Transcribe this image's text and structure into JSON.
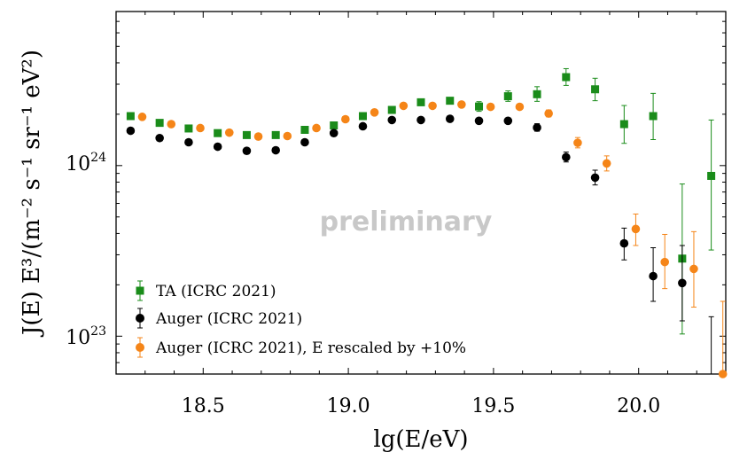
{
  "chart_data": {
    "type": "scatter",
    "title": "",
    "xlabel": "lg(E/eV)",
    "ylabel": "J(E) E³/(m⁻² s⁻¹ sr⁻¹ eV²)",
    "xlim": [
      18.2,
      20.3
    ],
    "ylim": [
      6e+22,
      8e+24
    ],
    "yscale": "log",
    "grid": false,
    "legend_position": "bottom-left",
    "annotation": "preliminary",
    "x_ticks": [
      18.5,
      19.0,
      19.5,
      20.0
    ],
    "x_tick_labels": [
      "18.5",
      "19.0",
      "19.5",
      "20.0"
    ],
    "y_ticks": [
      1e+23,
      1e+24
    ],
    "y_tick_labels": [
      {
        "base": "10",
        "exp": "23"
      },
      {
        "base": "10",
        "exp": "24"
      }
    ],
    "series": [
      {
        "name": "TA (ICRC 2021)",
        "color": "#1a8c1a",
        "marker": "square",
        "points": [
          {
            "x": 18.25,
            "y": 1.95e+24,
            "lo": 1.89e+24,
            "hi": 2.01e+24
          },
          {
            "x": 18.35,
            "y": 1.78e+24,
            "lo": 1.73e+24,
            "hi": 1.83e+24
          },
          {
            "x": 18.45,
            "y": 1.65e+24,
            "lo": 1.61e+24,
            "hi": 1.7e+24
          },
          {
            "x": 18.55,
            "y": 1.55e+24,
            "lo": 1.51e+24,
            "hi": 1.59e+24
          },
          {
            "x": 18.65,
            "y": 1.51e+24,
            "lo": 1.47e+24,
            "hi": 1.55e+24
          },
          {
            "x": 18.75,
            "y": 1.51e+24,
            "lo": 1.47e+24,
            "hi": 1.55e+24
          },
          {
            "x": 18.85,
            "y": 1.62e+24,
            "lo": 1.58e+24,
            "hi": 1.66e+24
          },
          {
            "x": 18.95,
            "y": 1.72e+24,
            "lo": 1.67e+24,
            "hi": 1.77e+24
          },
          {
            "x": 19.05,
            "y": 1.95e+24,
            "lo": 1.89e+24,
            "hi": 2.01e+24
          },
          {
            "x": 19.15,
            "y": 2.12e+24,
            "lo": 2.05e+24,
            "hi": 2.2e+24
          },
          {
            "x": 19.25,
            "y": 2.35e+24,
            "lo": 2.27e+24,
            "hi": 2.44e+24
          },
          {
            "x": 19.35,
            "y": 2.4e+24,
            "lo": 2.3e+24,
            "hi": 2.5e+24
          },
          {
            "x": 19.45,
            "y": 2.22e+24,
            "lo": 2.08e+24,
            "hi": 2.37e+24
          },
          {
            "x": 19.55,
            "y": 2.55e+24,
            "lo": 2.38e+24,
            "hi": 2.74e+24
          },
          {
            "x": 19.65,
            "y": 2.62e+24,
            "lo": 2.38e+24,
            "hi": 2.9e+24
          },
          {
            "x": 19.75,
            "y": 3.3e+24,
            "lo": 2.95e+24,
            "hi": 3.7e+24
          },
          {
            "x": 19.85,
            "y": 2.8e+24,
            "lo": 2.4e+24,
            "hi": 3.25e+24
          },
          {
            "x": 19.95,
            "y": 1.75e+24,
            "lo": 1.35e+24,
            "hi": 2.25e+24
          },
          {
            "x": 20.05,
            "y": 1.95e+24,
            "lo": 1.42e+24,
            "hi": 2.65e+24
          },
          {
            "x": 20.15,
            "y": 2.85e+23,
            "lo": 1.03e+23,
            "hi": 7.8e+23
          },
          {
            "x": 20.25,
            "y": 8.7e+23,
            "lo": 3.2e+23,
            "hi": 1.85e+24
          }
        ]
      },
      {
        "name": "Auger (ICRC 2021)",
        "color": "#000000",
        "marker": "circle",
        "points": [
          {
            "x": 18.25,
            "y": 1.6e+24,
            "lo": 1.58e+24,
            "hi": 1.62e+24
          },
          {
            "x": 18.35,
            "y": 1.45e+24,
            "lo": 1.43e+24,
            "hi": 1.47e+24
          },
          {
            "x": 18.45,
            "y": 1.37e+24,
            "lo": 1.35e+24,
            "hi": 1.39e+24
          },
          {
            "x": 18.55,
            "y": 1.29e+24,
            "lo": 1.27e+24,
            "hi": 1.31e+24
          },
          {
            "x": 18.65,
            "y": 1.22e+24,
            "lo": 1.2e+24,
            "hi": 1.24e+24
          },
          {
            "x": 18.75,
            "y": 1.23e+24,
            "lo": 1.21e+24,
            "hi": 1.25e+24
          },
          {
            "x": 18.85,
            "y": 1.37e+24,
            "lo": 1.35e+24,
            "hi": 1.39e+24
          },
          {
            "x": 18.95,
            "y": 1.55e+24,
            "lo": 1.53e+24,
            "hi": 1.57e+24
          },
          {
            "x": 19.05,
            "y": 1.7e+24,
            "lo": 1.67e+24,
            "hi": 1.73e+24
          },
          {
            "x": 19.15,
            "y": 1.85e+24,
            "lo": 1.82e+24,
            "hi": 1.88e+24
          },
          {
            "x": 19.25,
            "y": 1.85e+24,
            "lo": 1.81e+24,
            "hi": 1.89e+24
          },
          {
            "x": 19.35,
            "y": 1.88e+24,
            "lo": 1.84e+24,
            "hi": 1.93e+24
          },
          {
            "x": 19.45,
            "y": 1.83e+24,
            "lo": 1.78e+24,
            "hi": 1.89e+24
          },
          {
            "x": 19.55,
            "y": 1.83e+24,
            "lo": 1.77e+24,
            "hi": 1.9e+24
          },
          {
            "x": 19.65,
            "y": 1.67e+24,
            "lo": 1.59e+24,
            "hi": 1.76e+24
          },
          {
            "x": 19.75,
            "y": 1.12e+24,
            "lo": 1.05e+24,
            "hi": 1.2e+24
          },
          {
            "x": 19.85,
            "y": 8.5e+23,
            "lo": 7.7e+23,
            "hi": 9.4e+23
          },
          {
            "x": 19.95,
            "y": 3.5e+23,
            "lo": 2.8e+23,
            "hi": 4.3e+23
          },
          {
            "x": 20.05,
            "y": 2.25e+23,
            "lo": 1.6e+23,
            "hi": 3.3e+23
          },
          {
            "x": 20.15,
            "y": 2.05e+23,
            "lo": 1.23e+23,
            "hi": 3.4e+23
          },
          {
            "x": 20.25,
            "y": 5e+22,
            "lo": 5e+22,
            "hi": 1.3e+23
          }
        ]
      },
      {
        "name": "Auger (ICRC 2021), E rescaled by +10%",
        "color": "#f58518",
        "marker": "circle",
        "points": [
          {
            "x": 18.29,
            "y": 1.93e+24,
            "lo": 1.91e+24,
            "hi": 1.95e+24
          },
          {
            "x": 18.39,
            "y": 1.75e+24,
            "lo": 1.73e+24,
            "hi": 1.77e+24
          },
          {
            "x": 18.49,
            "y": 1.66e+24,
            "lo": 1.64e+24,
            "hi": 1.68e+24
          },
          {
            "x": 18.59,
            "y": 1.56e+24,
            "lo": 1.54e+24,
            "hi": 1.58e+24
          },
          {
            "x": 18.69,
            "y": 1.48e+24,
            "lo": 1.46e+24,
            "hi": 1.5e+24
          },
          {
            "x": 18.79,
            "y": 1.49e+24,
            "lo": 1.47e+24,
            "hi": 1.51e+24
          },
          {
            "x": 18.89,
            "y": 1.66e+24,
            "lo": 1.64e+24,
            "hi": 1.68e+24
          },
          {
            "x": 18.99,
            "y": 1.87e+24,
            "lo": 1.85e+24,
            "hi": 1.89e+24
          },
          {
            "x": 19.09,
            "y": 2.05e+24,
            "lo": 2.02e+24,
            "hi": 2.08e+24
          },
          {
            "x": 19.19,
            "y": 2.24e+24,
            "lo": 2.21e+24,
            "hi": 2.27e+24
          },
          {
            "x": 19.29,
            "y": 2.24e+24,
            "lo": 2.2e+24,
            "hi": 2.28e+24
          },
          {
            "x": 19.39,
            "y": 2.28e+24,
            "lo": 2.23e+24,
            "hi": 2.33e+24
          },
          {
            "x": 19.49,
            "y": 2.21e+24,
            "lo": 2.15e+24,
            "hi": 2.28e+24
          },
          {
            "x": 19.59,
            "y": 2.21e+24,
            "lo": 2.14e+24,
            "hi": 2.29e+24
          },
          {
            "x": 19.69,
            "y": 2.02e+24,
            "lo": 1.93e+24,
            "hi": 2.12e+24
          },
          {
            "x": 19.79,
            "y": 1.36e+24,
            "lo": 1.27e+24,
            "hi": 1.46e+24
          },
          {
            "x": 19.89,
            "y": 1.03e+24,
            "lo": 9.3e+23,
            "hi": 1.14e+24
          },
          {
            "x": 19.99,
            "y": 4.25e+23,
            "lo": 3.4e+23,
            "hi": 5.2e+23
          },
          {
            "x": 20.09,
            "y": 2.72e+23,
            "lo": 1.9e+23,
            "hi": 3.95e+23
          },
          {
            "x": 20.19,
            "y": 2.48e+23,
            "lo": 1.48e+23,
            "hi": 4.1e+23
          },
          {
            "x": 20.29,
            "y": 6e+22,
            "lo": 6e+22,
            "hi": 1.6e+23
          }
        ]
      }
    ]
  }
}
